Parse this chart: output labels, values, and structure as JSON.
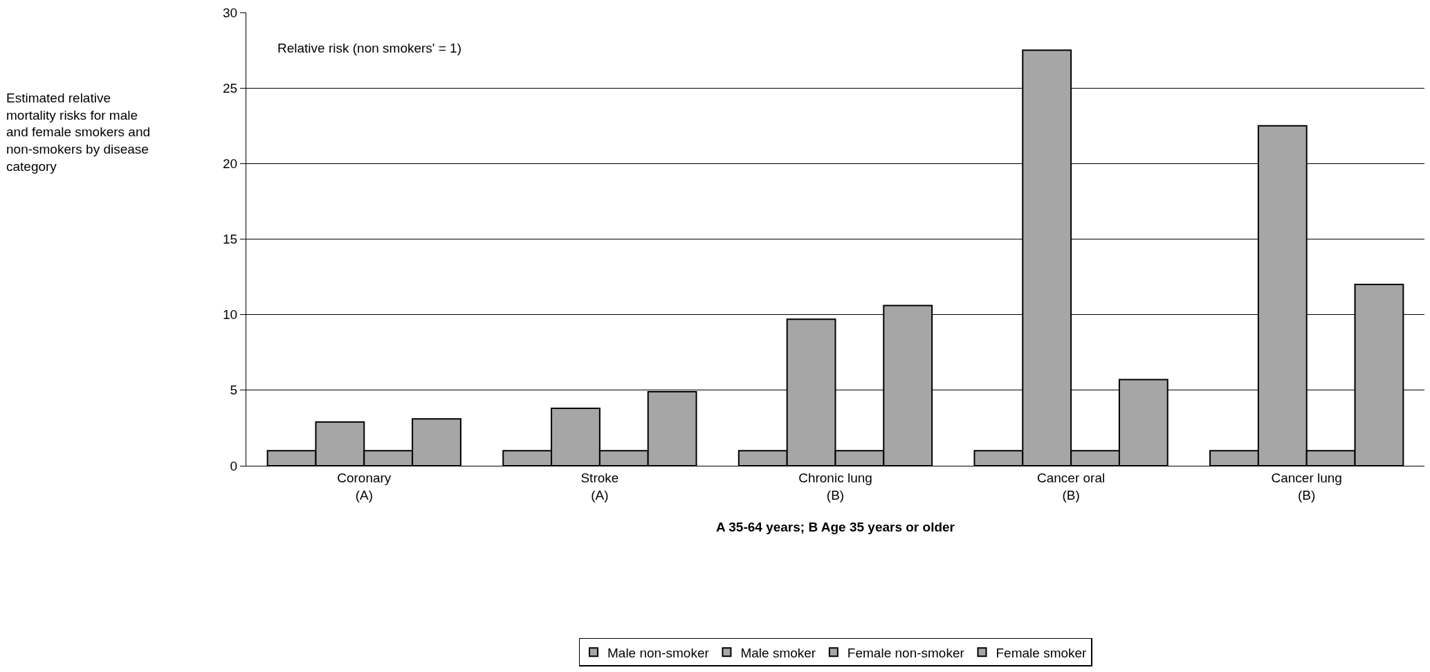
{
  "chart_data": {
    "type": "bar",
    "title": "Estimated relative mortality risks for male and female smokers and non-smokers by disease category",
    "ylabel": "Relative risk (non smokers' = 1)",
    "xlabel": "A 35-64 years; B Age 35 years or older",
    "categories": [
      "Coronary\n(A)",
      "Stroke\n(A)",
      "Chronic lung\n(B)",
      "Cancer oral\n(B)",
      "Cancer lung\n(B)"
    ],
    "series": [
      {
        "name": "Male non-smoker",
        "color": "#a6a6a6",
        "values": [
          1,
          1,
          1,
          1,
          1
        ]
      },
      {
        "name": "Male smoker",
        "color": "#a6a6a6",
        "values": [
          2.9,
          3.8,
          9.7,
          27.5,
          22.5
        ]
      },
      {
        "name": "Female non-smoker",
        "color": "#a6a6a6",
        "values": [
          1,
          1,
          1,
          1,
          1
        ]
      },
      {
        "name": "Female smoker",
        "color": "#a6a6a6",
        "values": [
          3.1,
          4.9,
          10.6,
          5.7,
          12.0
        ]
      }
    ],
    "ylim": [
      0,
      30
    ],
    "yticks": [
      0,
      5,
      10,
      15,
      20,
      25,
      30
    ],
    "grid": "y",
    "legend": "bottom"
  }
}
